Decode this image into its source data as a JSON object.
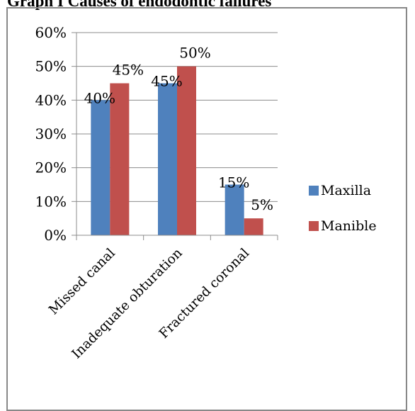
{
  "title": "Graph I Causes of endodontic failures",
  "chart_data": {
    "type": "bar",
    "categories": [
      "Missed canal",
      "Inadequate obturation",
      "Fractured coronal"
    ],
    "series": [
      {
        "name": "Maxilla",
        "values": [
          40,
          45,
          15
        ],
        "labels": [
          "40%",
          "45%",
          "15%"
        ],
        "color": "#4F81BD"
      },
      {
        "name": "Manible",
        "values": [
          45,
          50,
          5
        ],
        "labels": [
          "45%",
          "50%",
          "5%"
        ],
        "color": "#C0504D"
      }
    ],
    "ylim": [
      0,
      60
    ],
    "yticks": [
      0,
      10,
      20,
      30,
      40,
      50,
      60
    ],
    "ytick_labels": [
      "0%",
      "10%",
      "20%",
      "30%",
      "40%",
      "50%",
      "60%"
    ],
    "grid": "horizontal",
    "legend_position": "right"
  }
}
